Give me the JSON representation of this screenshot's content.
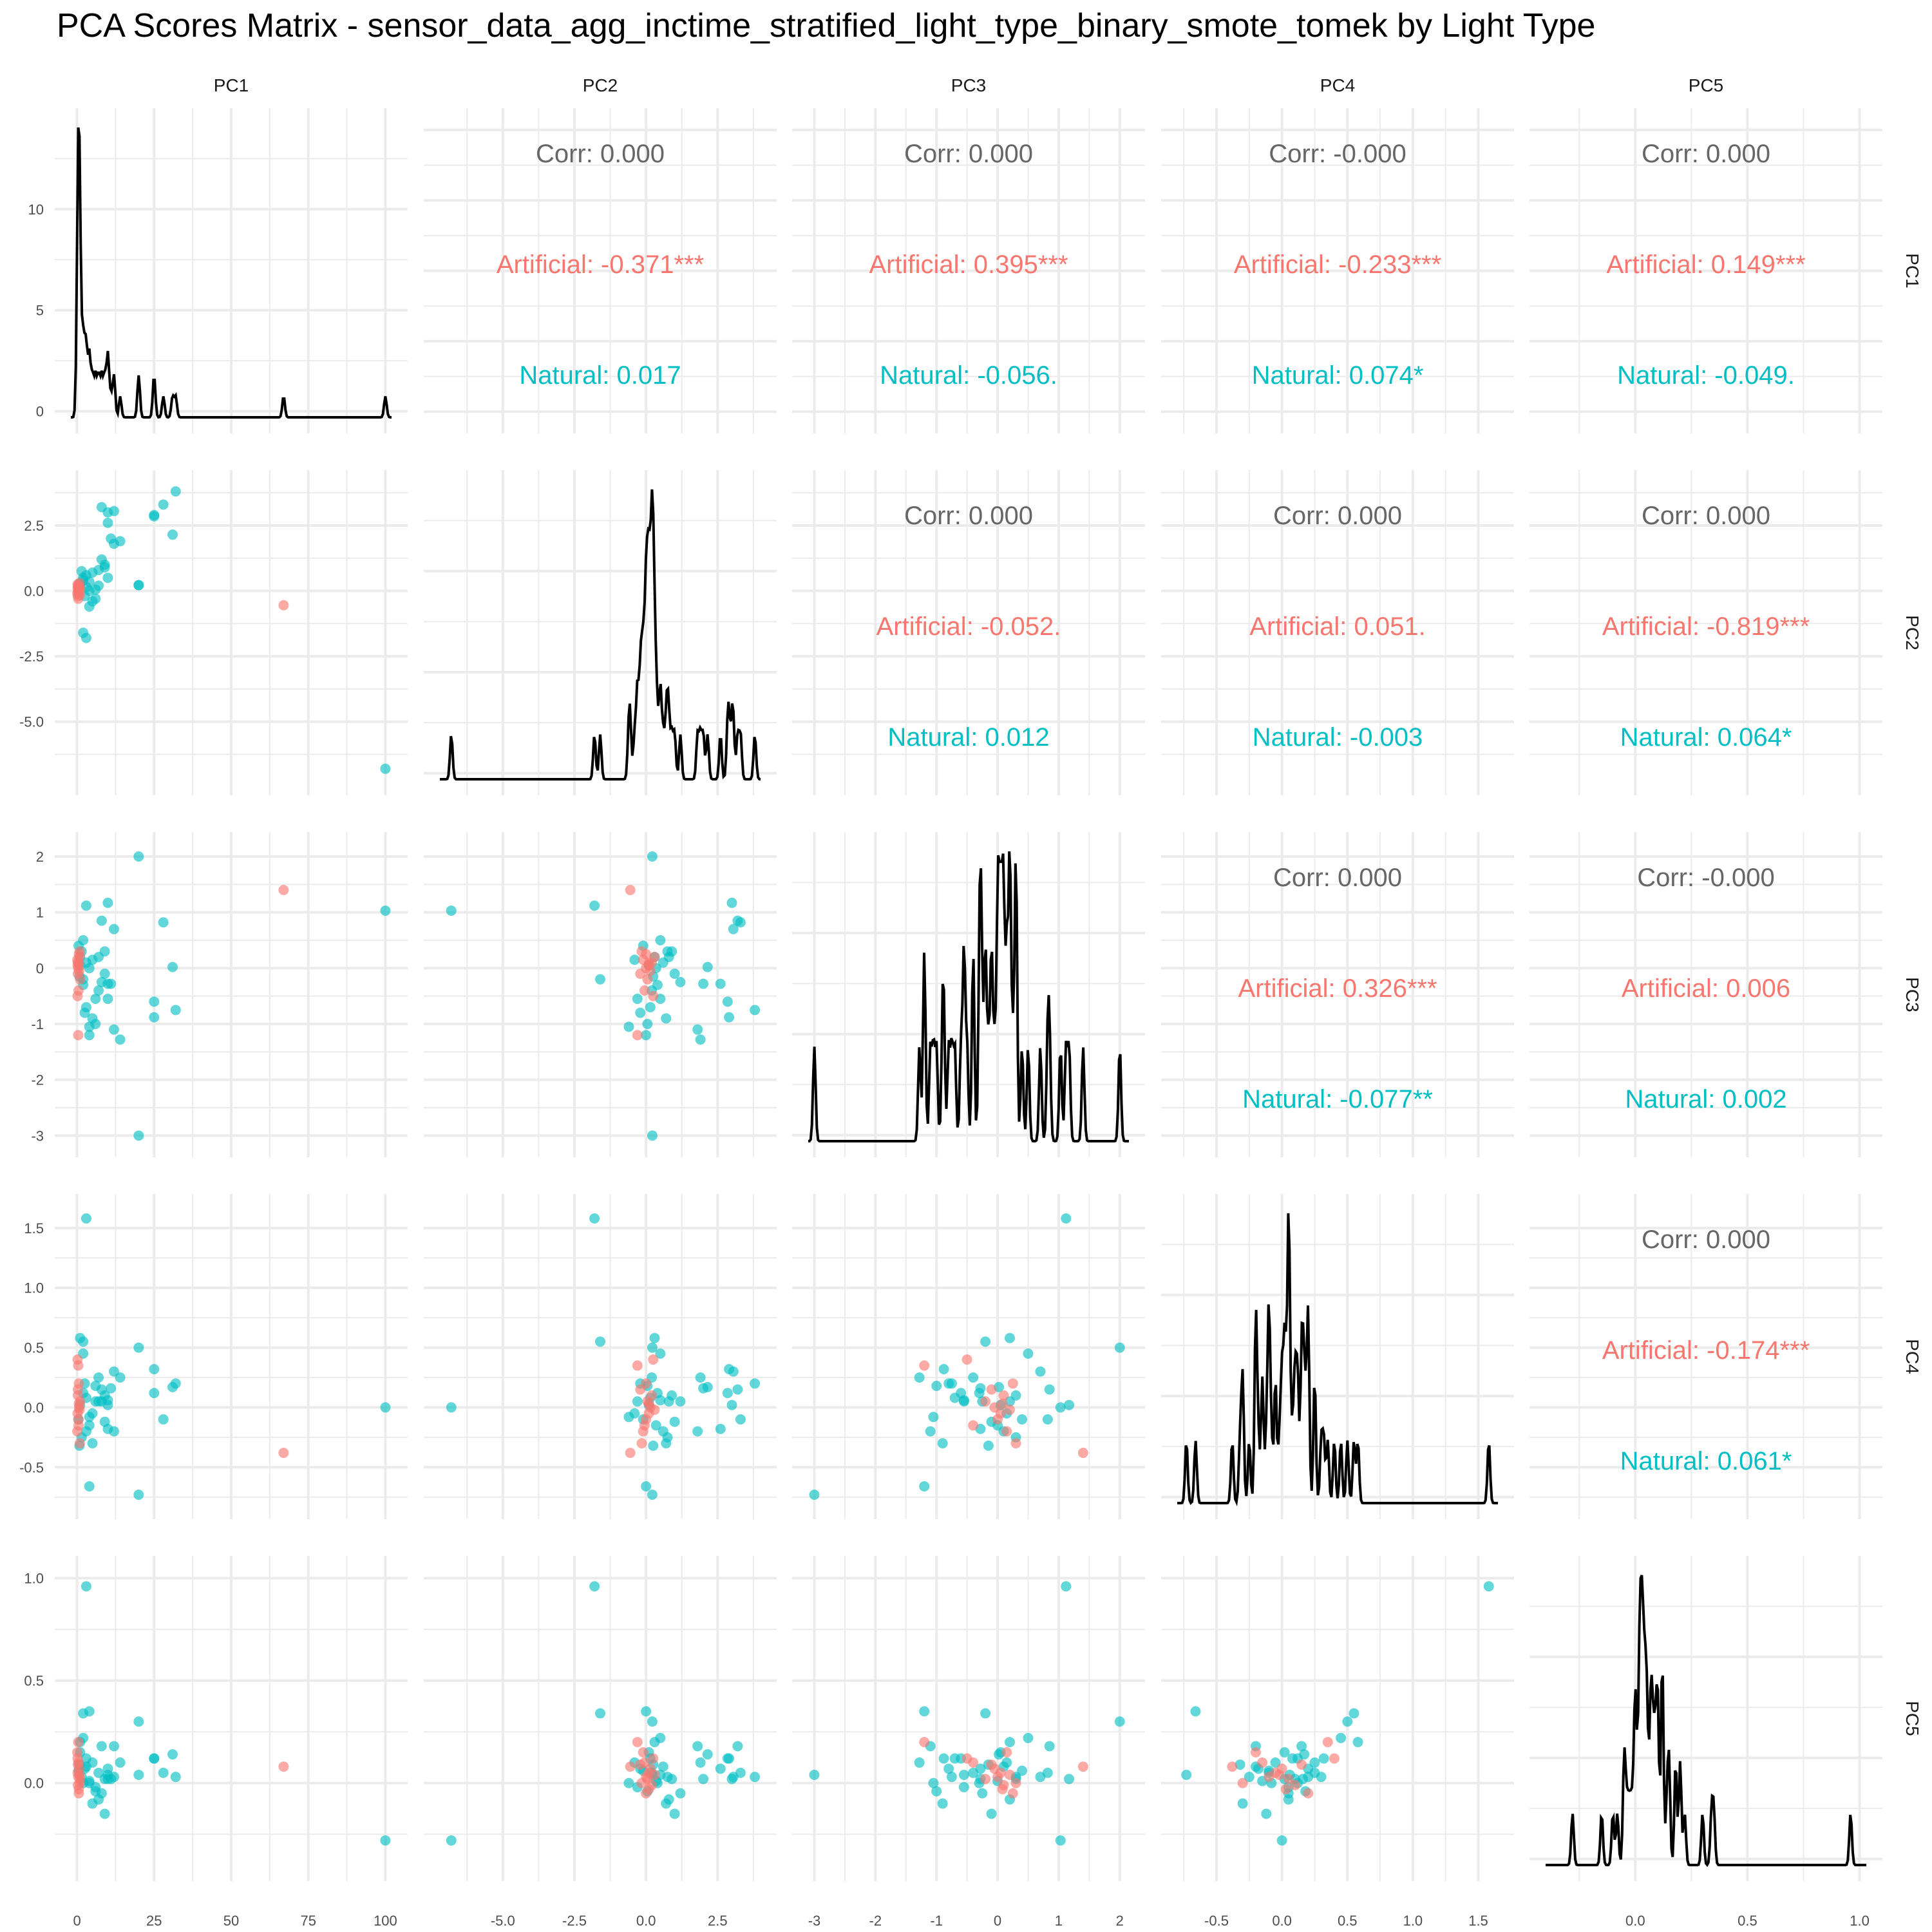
{
  "title": "PCA Scores Matrix - sensor_data_agg_inctime_stratified_light_type_binary_smote_tomek by Light Type",
  "colors": {
    "Artificial": "#F8766D",
    "Natural": "#00BFC4",
    "corr": "#666666",
    "density": "#000000",
    "grid": "#EBEBEB"
  },
  "chart_data": {
    "type": "scatter",
    "variables": [
      "PC1",
      "PC2",
      "PC3",
      "PC4",
      "PC5"
    ],
    "groups": [
      "Artificial",
      "Natural"
    ],
    "axes": {
      "PC1": {
        "range": [
          -2,
          102
        ],
        "ticks": [
          0,
          25,
          50,
          75,
          100
        ],
        "tick_labels": [
          "0",
          "25",
          "50",
          "75",
          "100"
        ]
      },
      "PC2": {
        "range": [
          -7.2,
          4.0
        ],
        "ticks": [
          -5,
          -2.5,
          0,
          2.5
        ],
        "tick_labels": [
          "-5.0",
          "-2.5",
          "0.0",
          "2.5"
        ]
      },
      "PC3": {
        "range": [
          -3.1,
          2.15
        ],
        "ticks": [
          -3,
          -2,
          -1,
          0,
          1,
          2
        ],
        "tick_labels": [
          "-3",
          "-2",
          "-1",
          "0",
          "1",
          "2"
        ]
      },
      "PC4": {
        "range": [
          -0.8,
          1.65
        ],
        "ticks": [
          -0.5,
          0,
          0.5,
          1,
          1.5
        ],
        "tick_labels": [
          "-0.5",
          "0.0",
          "0.5",
          "1.0",
          "1.5"
        ]
      },
      "PC5": {
        "range": [
          -0.4,
          1.03
        ],
        "ticks": [
          0,
          0.5,
          1
        ],
        "tick_labels": [
          "0.0",
          "0.5",
          "1.0"
        ]
      }
    },
    "density_y_axis": {
      "range": [
        -0.3,
        14.2
      ],
      "ticks": [
        0,
        5,
        10
      ],
      "tick_labels": [
        "0",
        "5",
        "10"
      ]
    },
    "correlations": [
      {
        "row": 0,
        "col": 1,
        "corr": "Corr: 0.000",
        "artificial": "Artificial: -0.371***",
        "natural": "Natural: 0.017"
      },
      {
        "row": 0,
        "col": 2,
        "corr": "Corr: 0.000",
        "artificial": "Artificial: 0.395***",
        "natural": "Natural: -0.056."
      },
      {
        "row": 0,
        "col": 3,
        "corr": "Corr: -0.000",
        "artificial": "Artificial: -0.233***",
        "natural": "Natural: 0.074*"
      },
      {
        "row": 0,
        "col": 4,
        "corr": "Corr: 0.000",
        "artificial": "Artificial: 0.149***",
        "natural": "Natural: -0.049."
      },
      {
        "row": 1,
        "col": 2,
        "corr": "Corr: 0.000",
        "artificial": "Artificial: -0.052.",
        "natural": "Natural: 0.012"
      },
      {
        "row": 1,
        "col": 3,
        "corr": "Corr: 0.000",
        "artificial": "Artificial: 0.051.",
        "natural": "Natural: -0.003"
      },
      {
        "row": 1,
        "col": 4,
        "corr": "Corr: 0.000",
        "artificial": "Artificial: -0.819***",
        "natural": "Natural: 0.064*"
      },
      {
        "row": 2,
        "col": 3,
        "corr": "Corr: 0.000",
        "artificial": "Artificial: 0.326***",
        "natural": "Natural: -0.077**"
      },
      {
        "row": 2,
        "col": 4,
        "corr": "Corr: -0.000",
        "artificial": "Artificial: 0.006",
        "natural": "Natural: 0.002"
      },
      {
        "row": 3,
        "col": 4,
        "corr": "Corr: 0.000",
        "artificial": "Artificial: -0.174***",
        "natural": "Natural: 0.061*"
      }
    ],
    "points": {
      "columns": [
        "PC1",
        "PC2",
        "PC3",
        "PC4",
        "PC5"
      ],
      "Natural": [
        [
          100,
          -6.8,
          1.03,
          0,
          -0.28
        ],
        [
          20,
          0.22,
          -3.0,
          -0.73,
          0.04
        ],
        [
          20,
          0.22,
          2.0,
          0.5,
          0.3
        ],
        [
          3,
          -1.8,
          1.12,
          1.58,
          0.96
        ],
        [
          25,
          2.85,
          -0.6,
          0.12,
          0.12
        ],
        [
          28,
          3.3,
          0.82,
          -0.1,
          0.05
        ],
        [
          31,
          2.15,
          0.02,
          0.17,
          0.14
        ],
        [
          32,
          3.8,
          -0.75,
          0.2,
          0.03
        ],
        [
          25,
          2.9,
          -0.88,
          0.32,
          0.12
        ],
        [
          10,
          3.0,
          1.17,
          0.02,
          0.02
        ],
        [
          12,
          1.8,
          -1.1,
          -0.2,
          0.18
        ],
        [
          14,
          1.9,
          -1.28,
          0.25,
          0.1
        ],
        [
          12,
          3.05,
          0.7,
          0.3,
          0.03
        ],
        [
          8,
          3.2,
          0.85,
          0.15,
          0.18
        ],
        [
          10,
          2.6,
          -0.28,
          -0.18,
          0.07
        ],
        [
          2,
          -1.6,
          -0.2,
          0.55,
          0.34
        ],
        [
          4,
          0.0,
          -1.2,
          -0.66,
          0.35
        ],
        [
          2,
          0.5,
          0.5,
          0.45,
          0.22
        ],
        [
          1,
          0.3,
          0.2,
          0.58,
          0.2
        ],
        [
          5,
          0.7,
          -0.9,
          -0.3,
          -0.1
        ],
        [
          7,
          0.2,
          -0.4,
          0.25,
          0.05
        ],
        [
          8,
          1.2,
          -0.25,
          0.05,
          -0.05
        ],
        [
          9,
          0.9,
          0.3,
          0.1,
          0.02
        ],
        [
          6,
          -0.3,
          -0.55,
          0.05,
          -0.02
        ],
        [
          3,
          0.6,
          0.1,
          -0.2,
          0.08
        ],
        [
          2,
          0.4,
          -0.3,
          0.12,
          0.0
        ],
        [
          1,
          0.1,
          0.05,
          0.02,
          0.15
        ],
        [
          0.5,
          -0.1,
          0.4,
          -0.1,
          0.06
        ],
        [
          3,
          0.15,
          -0.7,
          0.08,
          0.12
        ],
        [
          4,
          0.35,
          0.0,
          -0.15,
          0.01
        ],
        [
          6,
          0.05,
          -1.0,
          0.18,
          -0.04
        ],
        [
          5,
          -0.4,
          0.15,
          -0.05,
          0.1
        ],
        [
          9,
          1.0,
          -0.1,
          -0.12,
          -0.15
        ],
        [
          10,
          0.5,
          -0.55,
          0.06,
          0.04
        ],
        [
          1.5,
          0.75,
          0.3,
          -0.25,
          0.03
        ],
        [
          2.5,
          -0.2,
          -0.8,
          0.2,
          0.07
        ],
        [
          7,
          0.8,
          0.2,
          0.05,
          -0.08
        ],
        [
          0.8,
          0.25,
          -0.15,
          -0.32,
          0.09
        ],
        [
          11,
          2.0,
          -0.28,
          0.16,
          0.02
        ],
        [
          4,
          -0.6,
          -1.05,
          -0.08,
          0.0
        ]
      ],
      "Artificial": [
        [
          67,
          -0.55,
          1.4,
          -0.38,
          0.08
        ],
        [
          0.4,
          -0.3,
          -1.2,
          0.35,
          0.2
        ],
        [
          0.6,
          0.0,
          0.25,
          0.2,
          -0.05
        ],
        [
          0.2,
          0.1,
          0.05,
          -0.05,
          0.05
        ],
        [
          0.5,
          -0.05,
          -0.4,
          -0.15,
          0.1
        ],
        [
          0.3,
          0.2,
          0.1,
          0.1,
          -0.01
        ],
        [
          1.0,
          0.05,
          -0.2,
          0.05,
          0.02
        ],
        [
          0.1,
          -0.1,
          0.15,
          -0.2,
          0.15
        ],
        [
          0.7,
          0.15,
          -0.05,
          0.0,
          0.07
        ],
        [
          0.9,
          -0.15,
          0.3,
          -0.3,
          0.0
        ],
        [
          0.2,
          0.25,
          -0.5,
          0.4,
          0.12
        ],
        [
          0.4,
          0.0,
          0.0,
          -0.1,
          0.03
        ],
        [
          0.6,
          0.1,
          0.08,
          0.03,
          -0.03
        ],
        [
          0.3,
          -0.2,
          -0.1,
          0.15,
          0.09
        ],
        [
          0.8,
          0.3,
          0.2,
          -0.02,
          0.04
        ]
      ]
    }
  }
}
